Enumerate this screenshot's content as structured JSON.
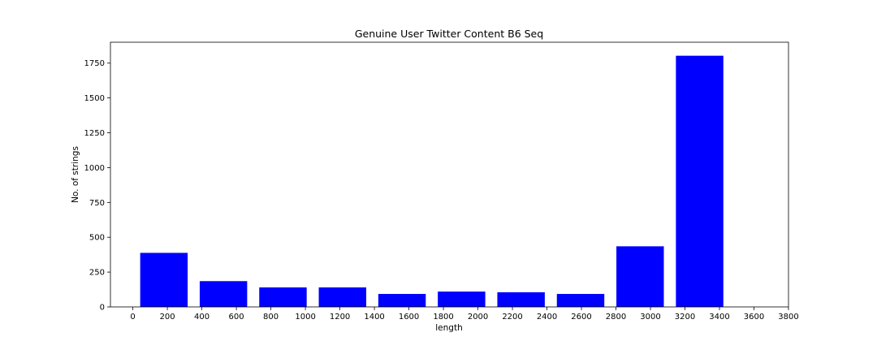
{
  "chart_data": {
    "type": "bar",
    "title": "Genuine User Twitter Content B6 Seq",
    "xlabel": "length",
    "ylabel": "No. of strings",
    "bar_color": "#0000ff",
    "xlim": [
      -130,
      3800
    ],
    "ylim": [
      0,
      1900
    ],
    "xticks": [
      0,
      200,
      400,
      600,
      800,
      1000,
      1200,
      1400,
      1600,
      1800,
      2000,
      2200,
      2400,
      2600,
      2800,
      3000,
      3200,
      3400,
      3600,
      3800
    ],
    "yticks": [
      0,
      250,
      500,
      750,
      1000,
      1250,
      1500,
      1750
    ],
    "bar_width": 275,
    "bars": [
      {
        "x": 180,
        "value": 388
      },
      {
        "x": 525,
        "value": 185
      },
      {
        "x": 870,
        "value": 140
      },
      {
        "x": 1215,
        "value": 140
      },
      {
        "x": 1560,
        "value": 93
      },
      {
        "x": 1905,
        "value": 110
      },
      {
        "x": 2250,
        "value": 105
      },
      {
        "x": 2595,
        "value": 93
      },
      {
        "x": 2940,
        "value": 435
      },
      {
        "x": 3285,
        "value": 1803
      }
    ],
    "grid": false,
    "legend": "none"
  }
}
